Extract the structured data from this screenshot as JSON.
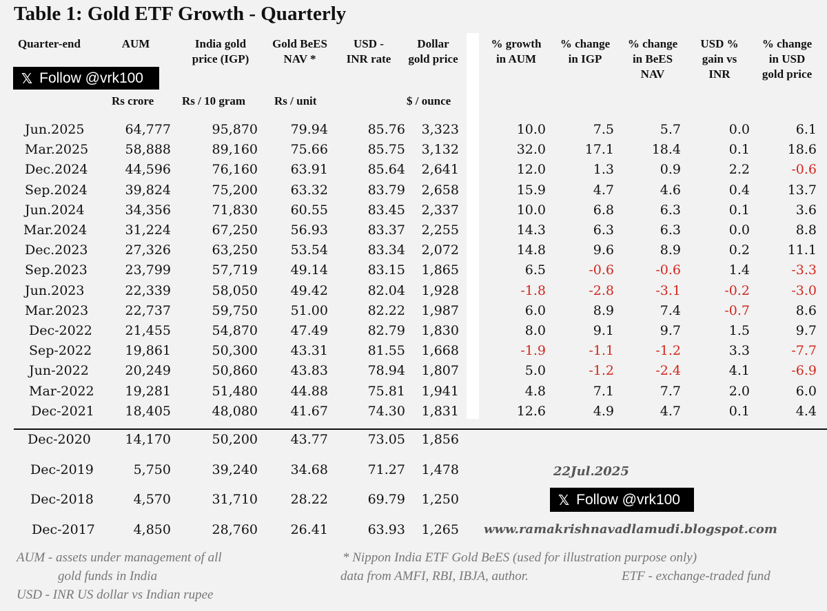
{
  "title": "Table 1: Gold ETF Growth - Quarterly",
  "headers": {
    "quarter": [
      "Quarter-end"
    ],
    "aum": [
      "AUM"
    ],
    "igp": [
      "India gold",
      "price (IGP)"
    ],
    "bees": [
      "Gold BeES",
      "NAV *"
    ],
    "usdinr": [
      "USD -",
      "INR rate"
    ],
    "dollar": [
      "Dollar",
      "gold price"
    ],
    "g_aum": [
      "% growth",
      "in AUM"
    ],
    "g_igp": [
      "% change",
      "in IGP"
    ],
    "g_bees": [
      "% change",
      "in BeES",
      "NAV"
    ],
    "g_usd": [
      "USD %",
      "gain vs",
      "INR"
    ],
    "g_gold": [
      "% change",
      "in USD",
      "gold price"
    ]
  },
  "units": {
    "aum": "Rs crore",
    "igp": "Rs / 10 gram",
    "bees": "Rs / unit",
    "dollar": "$ / ounce"
  },
  "follow": {
    "logo": "𝕏",
    "label": "Follow @vrk100"
  },
  "rows": [
    [
      "Jun.2025",
      "64,777",
      "95,870",
      "79.94",
      "85.76",
      "3,323",
      "10.0",
      "7.5",
      "5.7",
      "0.0",
      "6.1"
    ],
    [
      "Mar.2025",
      "58,888",
      "89,160",
      "75.66",
      "85.75",
      "3,132",
      "32.0",
      "17.1",
      "18.4",
      "0.1",
      "18.6"
    ],
    [
      "Dec.2024",
      "44,596",
      "76,160",
      "63.91",
      "85.64",
      "2,641",
      "12.0",
      "1.3",
      "0.9",
      "2.2",
      "-0.6"
    ],
    [
      "Sep.2024",
      "39,824",
      "75,200",
      "63.32",
      "83.79",
      "2,658",
      "15.9",
      "4.7",
      "4.6",
      "0.4",
      "13.7"
    ],
    [
      "Jun.2024",
      "34,356",
      "71,830",
      "60.55",
      "83.45",
      "2,337",
      "10.0",
      "6.8",
      "6.3",
      "0.1",
      "3.6"
    ],
    [
      "Mar.2024",
      "31,224",
      "67,250",
      "56.93",
      "83.37",
      "2,255",
      "14.3",
      "6.3",
      "6.3",
      "0.0",
      "8.8"
    ],
    [
      "Dec.2023",
      "27,326",
      "63,250",
      "53.54",
      "83.34",
      "2,072",
      "14.8",
      "9.6",
      "8.9",
      "0.2",
      "11.1"
    ],
    [
      "Sep.2023",
      "23,799",
      "57,719",
      "49.14",
      "83.15",
      "1,865",
      "6.5",
      "-0.6",
      "-0.6",
      "1.4",
      "-3.3"
    ],
    [
      "Jun.2023",
      "22,339",
      "58,050",
      "49.42",
      "82.04",
      "1,928",
      "-1.8",
      "-2.8",
      "-3.1",
      "-0.2",
      "-3.0"
    ],
    [
      "Mar.2023",
      "22,737",
      "59,750",
      "51.00",
      "82.22",
      "1,987",
      "6.0",
      "8.9",
      "7.4",
      "-0.7",
      "8.6"
    ],
    [
      "Dec-2022",
      "21,455",
      "54,870",
      "47.49",
      "82.79",
      "1,830",
      "8.0",
      "9.1",
      "9.7",
      "1.5",
      "9.7"
    ],
    [
      "Sep-2022",
      "19,861",
      "50,300",
      "43.31",
      "81.55",
      "1,668",
      "-1.9",
      "-1.1",
      "-1.2",
      "3.3",
      "-7.7"
    ],
    [
      "Jun-2022",
      "20,249",
      "50,860",
      "43.83",
      "78.94",
      "1,807",
      "5.0",
      "-1.2",
      "-2.4",
      "4.1",
      "-6.9"
    ],
    [
      "Mar-2022",
      "19,281",
      "51,480",
      "44.88",
      "75.81",
      "1,941",
      "4.8",
      "7.1",
      "7.7",
      "2.0",
      "6.0"
    ],
    [
      "Dec-2021",
      "18,405",
      "48,080",
      "41.67",
      "74.30",
      "1,831",
      "12.6",
      "4.9",
      "4.7",
      "0.1",
      "4.4"
    ]
  ],
  "annual_rows": [
    [
      "Dec-2020",
      "14,170",
      "50,200",
      "43.77",
      "73.05",
      "1,856"
    ],
    [
      "Dec-2019",
      "5,750",
      "39,240",
      "34.68",
      "71.27",
      "1,478"
    ],
    [
      "Dec-2018",
      "4,570",
      "31,710",
      "28.22",
      "69.79",
      "1,250"
    ],
    [
      "Dec-2017",
      "4,850",
      "28,760",
      "26.41",
      "63.93",
      "1,265"
    ]
  ],
  "date": "22Jul.2025",
  "blog": "www.ramakrishnavadlamudi.blogspot.com",
  "notes": {
    "aum1": "AUM - assets under management of all",
    "aum2": "gold funds in India",
    "usd": "USD - INR US dollar vs Indian rupee",
    "nippon": "* Nippon India ETF Gold BeES (used for illustration purpose only)",
    "source": "data from AMFI, RBI, IBJA, author.",
    "etf": "ETF - exchange-traded fund"
  },
  "colors": {
    "negative": "#d0261d",
    "background": "#f2f2f2",
    "badge": "#000000"
  }
}
